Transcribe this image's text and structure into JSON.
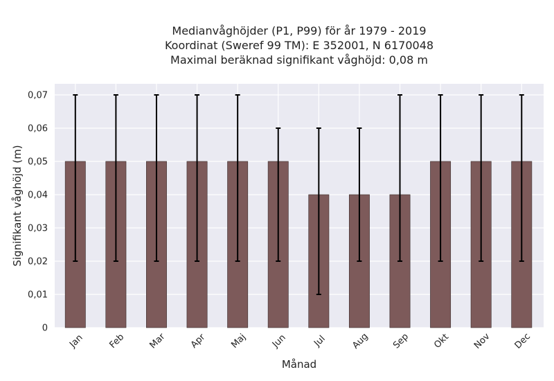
{
  "chart_data": {
    "type": "bar",
    "title_lines": [
      "Medianvåghöjder (P1, P99) för år 1979 - 2019",
      "Koordinat (Sweref 99 TM): E 352001, N 6170048",
      "Maximal beräknad signifikant våghöjd: 0,08 m"
    ],
    "xlabel": "Månad",
    "ylabel": "Signifikant våghöjd (m)",
    "ylim": [
      0,
      0.07
    ],
    "yticks": [
      "0",
      "0,01",
      "0,02",
      "0,03",
      "0,04",
      "0,05",
      "0,06",
      "0,07"
    ],
    "categories": [
      "Jan",
      "Feb",
      "Mar",
      "Apr",
      "Maj",
      "Jun",
      "Jul",
      "Aug",
      "Sep",
      "Okt",
      "Nov",
      "Dec"
    ],
    "values": [
      0.05,
      0.05,
      0.05,
      0.05,
      0.05,
      0.05,
      0.04,
      0.04,
      0.04,
      0.05,
      0.05,
      0.05
    ],
    "p1": [
      0.02,
      0.02,
      0.02,
      0.02,
      0.02,
      0.02,
      0.01,
      0.02,
      0.02,
      0.02,
      0.02,
      0.02
    ],
    "p99": [
      0.07,
      0.07,
      0.07,
      0.07,
      0.07,
      0.06,
      0.06,
      0.06,
      0.07,
      0.07,
      0.07,
      0.07
    ],
    "grid": true,
    "colors": {
      "bar": "#7d5a5a",
      "plot_bg": "#eaeaf2",
      "grid": "#ffffff",
      "errorbar": "#000000"
    }
  }
}
